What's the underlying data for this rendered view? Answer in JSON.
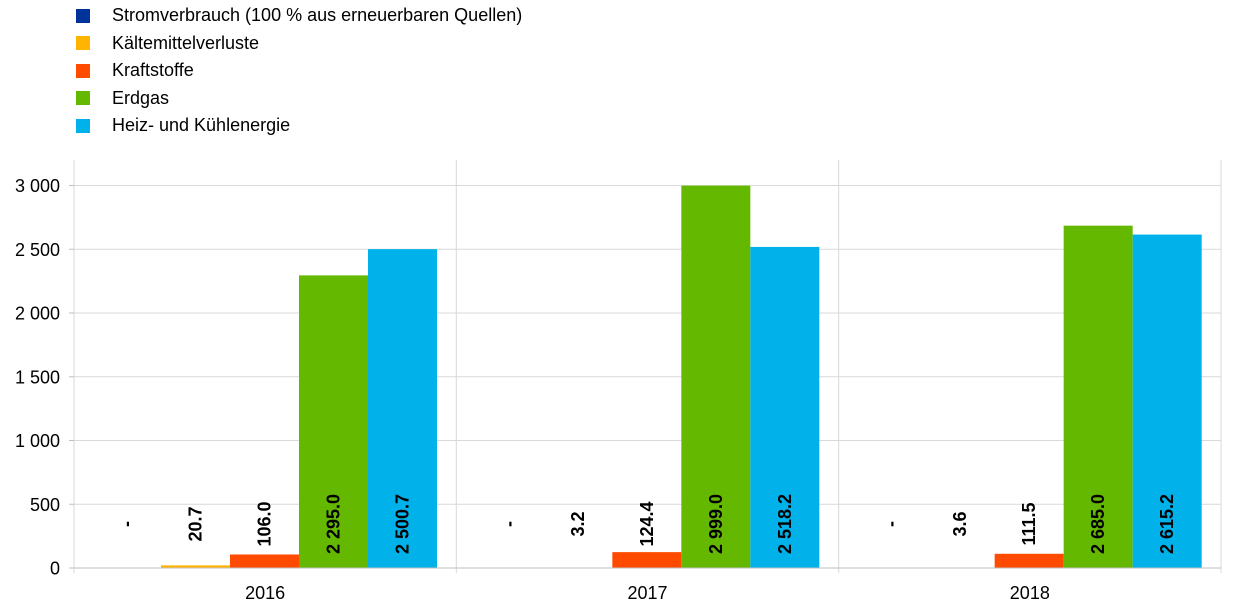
{
  "chart_data": {
    "type": "bar",
    "categories": [
      "2016",
      "2017",
      "2018"
    ],
    "series": [
      {
        "name": "Stromverbrauch (100 % aus erneuerbaren Quellen)",
        "color": "#003399",
        "values": [
          null,
          null,
          null
        ],
        "labels": [
          "-",
          "-",
          "-"
        ]
      },
      {
        "name": "Kältemittelverluste",
        "color": "#ffb400",
        "values": [
          20.7,
          3.2,
          3.6
        ],
        "labels": [
          "20.7",
          "3.2",
          "3.6"
        ]
      },
      {
        "name": "Kraftstoffe",
        "color": "#ff4b00",
        "values": [
          106.0,
          124.4,
          111.5
        ],
        "labels": [
          "106.0",
          "124.4",
          "111.5"
        ]
      },
      {
        "name": "Erdgas",
        "color": "#65b800",
        "values": [
          2295.0,
          2999.0,
          2685.0
        ],
        "labels": [
          "2 295.0",
          "2 999.0",
          "2 685.0"
        ]
      },
      {
        "name": "Heiz- und Kühlenergie",
        "color": "#00b1ea",
        "values": [
          2500.7,
          2518.2,
          2615.2
        ],
        "labels": [
          "2 500.7",
          "2 518.2",
          "2 615.2"
        ]
      }
    ],
    "yticks": [
      {
        "value": 0,
        "label": "0"
      },
      {
        "value": 500,
        "label": "500"
      },
      {
        "value": 1000,
        "label": "1 000"
      },
      {
        "value": 1500,
        "label": "1 500"
      },
      {
        "value": 2000,
        "label": "2 000"
      },
      {
        "value": 2500,
        "label": "2 500"
      },
      {
        "value": 3000,
        "label": "3 000"
      }
    ],
    "ylim": [
      0,
      3200
    ],
    "grid": true,
    "legend_position": "top-left"
  }
}
